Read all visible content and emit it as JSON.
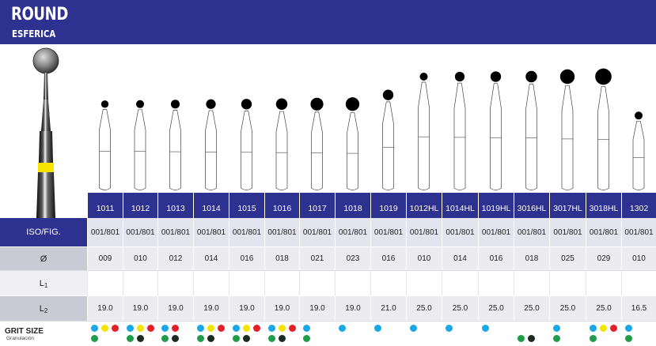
{
  "header": {
    "title": "ROUND",
    "subtitle": "ESFERICA"
  },
  "colors": {
    "brand_blue": "#2d3190",
    "grit_blue": "#1aa7e6",
    "grit_yellow": "#f3e500",
    "grit_red": "#e3202a",
    "grit_green": "#1f9c4a",
    "grit_black": "#1d2a22"
  },
  "table": {
    "row_labels": {
      "iso": "ISO/FIG.",
      "diameter": "Ø",
      "l1": "L1",
      "l2": "L2",
      "grit": "GRIT SIZE",
      "grit_sub": "Granulación"
    },
    "products": [
      {
        "code": "1011",
        "iso": "001/801",
        "diameter": "009",
        "l1": "",
        "l2": "19.0",
        "grit": [
          [
            "blue",
            "yellow",
            "red"
          ],
          [
            "green"
          ]
        ]
      },
      {
        "code": "1012",
        "iso": "001/801",
        "diameter": "010",
        "l1": "",
        "l2": "19.0",
        "grit": [
          [
            "blue",
            "yellow",
            "red"
          ],
          [
            "green",
            "black"
          ]
        ]
      },
      {
        "code": "1013",
        "iso": "001/801",
        "diameter": "012",
        "l1": "",
        "l2": "19.0",
        "grit": [
          [
            "blue",
            "red"
          ],
          [
            "green",
            "black"
          ]
        ]
      },
      {
        "code": "1014",
        "iso": "001/801",
        "diameter": "014",
        "l1": "",
        "l2": "19.0",
        "grit": [
          [
            "blue",
            "yellow",
            "red"
          ],
          [
            "green",
            "black"
          ]
        ]
      },
      {
        "code": "1015",
        "iso": "001/801",
        "diameter": "016",
        "l1": "",
        "l2": "19.0",
        "grit": [
          [
            "blue",
            "yellow",
            "red"
          ],
          [
            "green",
            "black"
          ]
        ]
      },
      {
        "code": "1016",
        "iso": "001/801",
        "diameter": "018",
        "l1": "",
        "l2": "19.0",
        "grit": [
          [
            "blue",
            "yellow",
            "red"
          ],
          [
            "green",
            "black"
          ]
        ]
      },
      {
        "code": "1017",
        "iso": "001/801",
        "diameter": "021",
        "l1": "",
        "l2": "19.0",
        "grit": [
          [
            "blue"
          ],
          [
            "green"
          ]
        ]
      },
      {
        "code": "1018",
        "iso": "001/801",
        "diameter": "023",
        "l1": "",
        "l2": "19.0",
        "grit": [
          [
            "blue"
          ],
          []
        ]
      },
      {
        "code": "1019",
        "iso": "001/801",
        "diameter": "016",
        "l1": "",
        "l2": "21.0",
        "grit": [
          [
            "blue"
          ],
          []
        ]
      },
      {
        "code": "1012HL",
        "iso": "001/801",
        "diameter": "010",
        "l1": "",
        "l2": "25.0",
        "grit": [
          [
            "blue"
          ],
          []
        ]
      },
      {
        "code": "1014HL",
        "iso": "001/801",
        "diameter": "014",
        "l1": "",
        "l2": "25.0",
        "grit": [
          [
            "blue"
          ],
          []
        ]
      },
      {
        "code": "1019HL",
        "iso": "001/801",
        "diameter": "016",
        "l1": "",
        "l2": "25.0",
        "grit": [
          [
            "blue"
          ],
          []
        ]
      },
      {
        "code": "3016HL",
        "iso": "001/801",
        "diameter": "018",
        "l1": "",
        "l2": "25.0",
        "grit": [
          [],
          [
            "green",
            "black"
          ]
        ]
      },
      {
        "code": "3017HL",
        "iso": "001/801",
        "diameter": "025",
        "l1": "",
        "l2": "25.0",
        "grit": [
          [
            "blue"
          ],
          [
            "green"
          ]
        ]
      },
      {
        "code": "3018HL",
        "iso": "001/801",
        "diameter": "029",
        "l1": "",
        "l2": "25.0",
        "grit": [
          [
            "blue",
            "yellow",
            "red"
          ],
          [
            "green"
          ]
        ]
      },
      {
        "code": "1302",
        "iso": "001/801",
        "diameter": "010",
        "l1": "",
        "l2": "16.5",
        "grit": [
          [
            "blue"
          ],
          [
            "green"
          ]
        ]
      }
    ]
  }
}
